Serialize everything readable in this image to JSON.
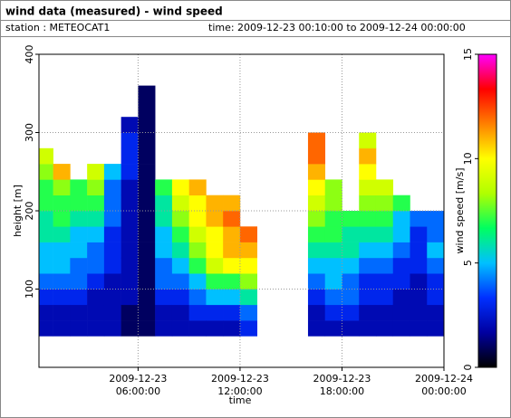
{
  "chart_data": {
    "type": "heatmap",
    "title": "wind data (measured) - wind speed",
    "subtitle_left": "station : METEOCAT1",
    "subtitle_right": "time: 2009-12-23 00:10:00 to 2009-12-24 00:00:00",
    "xlabel": "time",
    "ylabel": "height [m]",
    "zlabel": "wind speed [m/s]",
    "xlim": [
      "2009-12-23 00:10:00",
      "2009-12-24 00:00:00"
    ],
    "xticks": [
      {
        "value": "2009-12-23 06:00:00",
        "label": [
          "2009-12-23",
          "06:00:00"
        ]
      },
      {
        "value": "2009-12-23 12:00:00",
        "label": [
          "2009-12-23",
          "12:00:00"
        ]
      },
      {
        "value": "2009-12-23 18:00:00",
        "label": [
          "2009-12-23",
          "18:00:00"
        ]
      },
      {
        "value": "2009-12-24 00:00:00",
        "label": [
          "2009-12-24",
          "00:00:00"
        ]
      }
    ],
    "ylim": [
      0,
      400
    ],
    "yticks": [
      100,
      200,
      300,
      400
    ],
    "zlim": [
      0,
      15
    ],
    "zticks": [
      0,
      5,
      10,
      15
    ],
    "colors": [
      "#000000",
      "#0000a0",
      "#0030ff",
      "#00c0ff",
      "#00ff60",
      "#b0ff00",
      "#ffff00",
      "#ff8000",
      "#ff0000",
      "#ff00ff"
    ],
    "grid": true,
    "x": [
      "2009-12-23 00:10:00",
      "2009-12-23 01:00:00",
      "2009-12-23 02:00:00",
      "2009-12-23 03:00:00",
      "2009-12-23 04:00:00",
      "2009-12-23 05:00:00",
      "2009-12-23 06:00:00",
      "2009-12-23 07:00:00",
      "2009-12-23 08:00:00",
      "2009-12-23 09:00:00",
      "2009-12-23 10:00:00",
      "2009-12-23 11:00:00",
      "2009-12-23 12:00:00",
      "2009-12-23 13:00:00",
      "2009-12-23 14:00:00",
      "2009-12-23 15:00:00",
      "2009-12-23 16:00:00",
      "2009-12-23 17:00:00",
      "2009-12-23 18:00:00",
      "2009-12-23 19:00:00",
      "2009-12-23 20:00:00",
      "2009-12-23 21:00:00",
      "2009-12-23 22:00:00",
      "2009-12-23 23:00:00",
      "2009-12-24 00:00:00"
    ],
    "y": [
      40,
      60,
      80,
      100,
      120,
      140,
      160,
      180,
      200,
      220,
      240,
      260,
      280,
      300,
      320,
      340,
      360
    ],
    "z": [
      [
        2,
        2,
        3,
        4,
        5,
        5,
        6,
        6,
        7,
        7,
        8,
        9,
        null,
        null,
        null,
        null
      ],
      [
        2,
        2,
        3,
        4,
        5,
        5,
        6,
        7,
        7,
        8,
        11,
        null,
        null,
        null,
        null,
        null
      ],
      [
        2,
        2,
        3,
        4,
        4,
        5,
        5,
        6,
        7,
        7,
        null,
        null,
        null,
        null,
        null,
        null
      ],
      [
        2,
        2,
        2,
        3,
        4,
        4,
        5,
        6,
        7,
        8,
        9,
        null,
        null,
        null,
        null,
        null
      ],
      [
        2,
        2,
        2,
        2,
        3,
        3,
        3,
        4,
        4,
        4,
        5,
        null,
        null,
        null,
        null,
        null
      ],
      [
        1,
        1,
        2,
        2,
        2,
        2,
        2,
        2,
        2,
        2,
        3,
        3,
        3,
        2,
        null,
        null
      ],
      [
        1,
        1,
        1,
        1,
        1,
        1,
        1,
        1,
        1,
        1,
        1,
        1,
        1,
        1,
        1,
        1
      ],
      [
        2,
        2,
        3,
        4,
        4,
        5,
        5,
        6,
        6,
        7,
        null,
        null,
        null,
        null,
        null,
        null
      ],
      [
        2,
        2,
        3,
        4,
        5,
        6,
        7,
        8,
        9,
        10,
        null,
        null,
        null,
        null,
        null,
        null
      ],
      [
        2,
        3,
        4,
        5,
        7,
        8,
        9,
        10,
        10,
        11,
        null,
        null,
        null,
        null,
        null,
        null
      ],
      [
        2,
        3,
        5,
        7,
        9,
        10,
        10,
        11,
        11,
        null,
        null,
        null,
        null,
        null,
        null,
        null
      ],
      [
        2,
        3,
        5,
        7,
        10,
        11,
        11,
        12,
        11,
        null,
        null,
        null,
        null,
        null,
        null,
        null
      ],
      [
        3,
        4,
        6,
        8,
        10,
        11,
        12,
        null,
        null,
        null,
        null,
        null,
        null,
        null,
        null,
        null
      ],
      [
        null,
        null,
        null,
        null,
        null,
        null,
        null,
        null,
        null,
        null,
        null,
        null,
        null,
        null,
        null,
        null
      ],
      [
        null,
        null,
        null,
        null,
        null,
        null,
        null,
        null,
        null,
        null,
        null,
        null,
        null,
        null,
        null,
        null
      ],
      [
        null,
        null,
        null,
        null,
        null,
        null,
        null,
        null,
        null,
        null,
        null,
        null,
        null,
        null,
        null,
        null
      ],
      [
        2,
        2,
        3,
        4,
        5,
        6,
        7,
        8,
        9,
        10,
        11,
        12,
        12,
        null,
        null,
        null
      ],
      [
        2,
        3,
        4,
        5,
        5,
        6,
        7,
        7,
        8,
        8,
        null,
        null,
        null,
        null,
        null,
        null
      ],
      [
        2,
        3,
        4,
        4,
        5,
        6,
        6,
        7,
        null,
        null,
        null,
        null,
        null,
        null,
        null,
        null
      ],
      [
        2,
        2,
        3,
        3,
        4,
        5,
        6,
        7,
        8,
        9,
        10,
        11,
        9,
        null,
        null,
        null
      ],
      [
        2,
        2,
        3,
        3,
        4,
        5,
        6,
        7,
        8,
        9,
        null,
        null,
        null,
        null,
        null,
        null
      ],
      [
        2,
        2,
        2,
        3,
        3,
        4,
        5,
        5,
        7,
        null,
        null,
        null,
        null,
        null,
        null,
        null
      ],
      [
        2,
        2,
        2,
        2,
        3,
        3,
        3,
        4,
        null,
        null,
        null,
        null,
        null,
        null,
        null,
        null
      ],
      [
        2,
        2,
        3,
        3,
        4,
        5,
        4,
        4,
        null,
        null,
        null,
        null,
        null,
        null,
        null,
        null
      ]
    ]
  }
}
